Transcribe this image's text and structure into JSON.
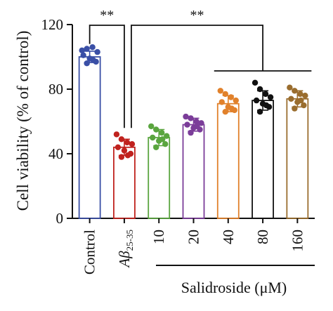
{
  "chart_data": {
    "type": "bar",
    "ylabel": "Cell viability (% of control)",
    "xlabel": "",
    "ylim": [
      0,
      120
    ],
    "yticks": [
      0,
      40,
      80,
      120
    ],
    "error_bars": "mean ± SD with individual points",
    "group_label": "Salidroside (μM)",
    "categories": [
      {
        "label": "Control",
        "color": "#3a4fa6",
        "mean": 100,
        "sd": 3.5,
        "points": [
          104,
          105,
          106,
          103,
          101,
          99,
          97,
          96,
          98
        ]
      },
      {
        "label_main": "Aβ",
        "label_sub": "25-35",
        "label": "Aβ25-35",
        "color": "#c0221e",
        "mean": 44,
        "sd": 5,
        "points": [
          52,
          49,
          47,
          46,
          44,
          42,
          40,
          38,
          39
        ]
      },
      {
        "label": "10",
        "color": "#5aa53f",
        "mean": 50,
        "sd": 5,
        "points": [
          57,
          55,
          53,
          51,
          50,
          48,
          46,
          44,
          49
        ]
      },
      {
        "label": "20",
        "color": "#7b3d99",
        "mean": 58,
        "sd": 4,
        "points": [
          63,
          62,
          60,
          59,
          58,
          56,
          55,
          53,
          57
        ]
      },
      {
        "label": "40",
        "color": "#e1812b",
        "mean": 71,
        "sd": 5,
        "points": [
          79,
          77,
          75,
          73,
          72,
          69,
          67,
          66,
          68
        ]
      },
      {
        "label": "80",
        "color": "#111111",
        "mean": 73,
        "sd": 6,
        "points": [
          84,
          80,
          77,
          75,
          73,
          71,
          69,
          66,
          70
        ]
      },
      {
        "label": "160",
        "color": "#9a6d2e",
        "mean": 74,
        "sd": 5,
        "points": [
          81,
          79,
          77,
          76,
          74,
          72,
          70,
          68,
          73
        ]
      }
    ],
    "significance": [
      {
        "text": "**",
        "from": 0,
        "to": 1
      },
      {
        "text": "**",
        "from": 1,
        "to_group": [
          4,
          6
        ]
      }
    ]
  }
}
